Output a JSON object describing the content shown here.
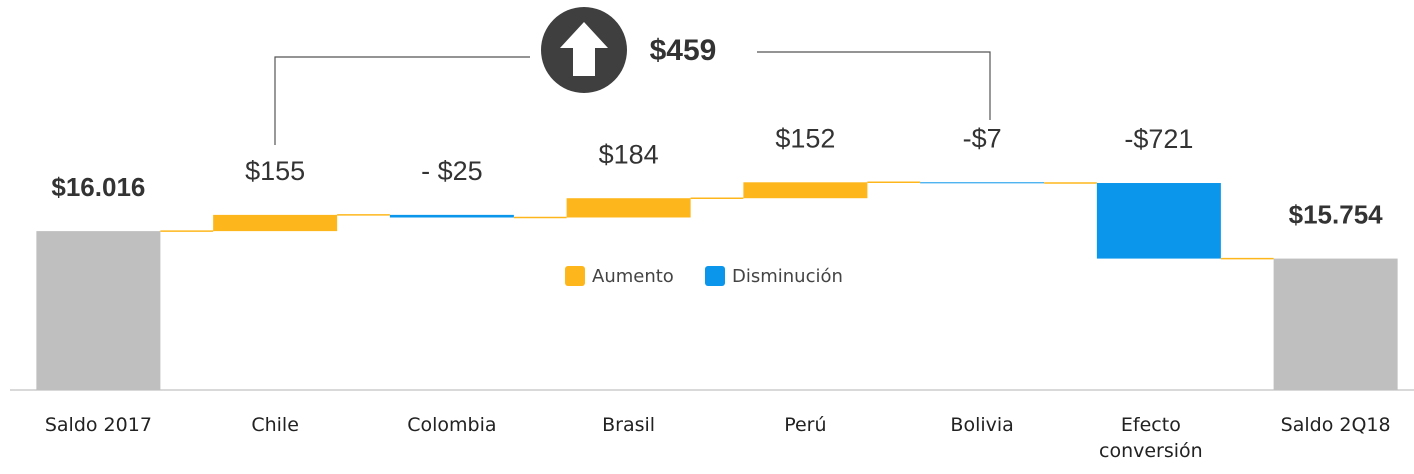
{
  "chart_data": {
    "type": "waterfall",
    "categories": [
      "Saldo 2017",
      "Chile",
      "Colombia",
      "Brasil",
      "Perú",
      "Bolivia",
      "Efecto conversión",
      "Saldo 2Q18"
    ],
    "values": [
      16016,
      155,
      -25,
      184,
      152,
      -7,
      -721,
      15754
    ],
    "value_labels": [
      "$16.016",
      "$155",
      "- $25",
      "$184",
      "$152",
      "-$7",
      "-$721",
      "$15.754"
    ],
    "is_total": [
      true,
      false,
      false,
      false,
      false,
      false,
      false,
      true
    ],
    "total_color": "#bfbfbf",
    "legend": [
      {
        "name": "Aumento",
        "color": "#fdb71c"
      },
      {
        "name": "Disminución",
        "color": "#0b96eb"
      }
    ],
    "connector_color": "#fdb71c",
    "annotation": "$459",
    "ylim": [
      14500,
      17000
    ]
  }
}
